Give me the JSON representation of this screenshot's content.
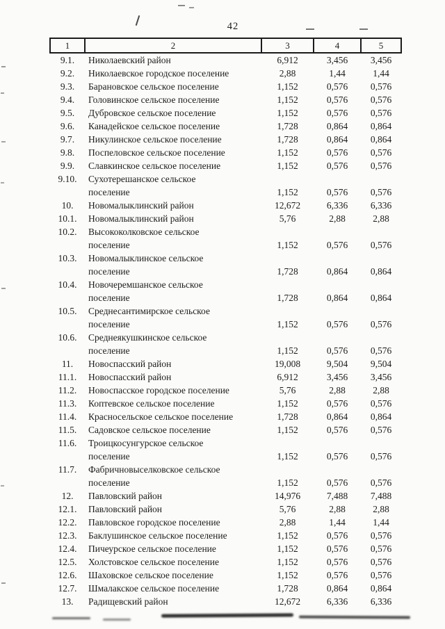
{
  "page": {
    "number": "42"
  },
  "table": {
    "header": [
      "1",
      "2",
      "3",
      "4",
      "5"
    ],
    "rows": [
      {
        "num": "9.1.",
        "name": "Николаевский район",
        "c3": "6,912",
        "c4": "3,456",
        "c5": "3,456"
      },
      {
        "num": "9.2.",
        "name": "Николаевское городское поселение",
        "c3": "2,88",
        "c4": "1,44",
        "c5": "1,44"
      },
      {
        "num": "9.3.",
        "name": "Барановское сельское поселение",
        "c3": "1,152",
        "c4": "0,576",
        "c5": "0,576"
      },
      {
        "num": "9.4.",
        "name": "Головинское сельское поселение",
        "c3": "1,152",
        "c4": "0,576",
        "c5": "0,576"
      },
      {
        "num": "9.5.",
        "name": "Дубровское сельское поселение",
        "c3": "1,152",
        "c4": "0,576",
        "c5": "0,576"
      },
      {
        "num": "9.6.",
        "name": "Канадейское сельское поселение",
        "c3": "1,728",
        "c4": "0,864",
        "c5": "0,864"
      },
      {
        "num": "9.7.",
        "name": "Никулинское сельское поселение",
        "c3": "1,728",
        "c4": "0,864",
        "c5": "0,864"
      },
      {
        "num": "9.8.",
        "name": "Поспеловское сельское поселение",
        "c3": "1,152",
        "c4": "0,576",
        "c5": "0,576"
      },
      {
        "num": "9.9.",
        "name": "Славкинское сельское поселение",
        "c3": "1,152",
        "c4": "0,576",
        "c5": "0,576"
      },
      {
        "num": "9.10.",
        "name": "Сухотерешанское сельское\nпоселение",
        "c3": "1,152",
        "c4": "0,576",
        "c5": "0,576"
      },
      {
        "num": "10.",
        "name": "Новомалыклинский район",
        "c3": "12,672",
        "c4": "6,336",
        "c5": "6,336"
      },
      {
        "num": "10.1.",
        "name": "Новомалыклинский район",
        "c3": "5,76",
        "c4": "2,88",
        "c5": "2,88"
      },
      {
        "num": "10.2.",
        "name": "Высококолковское сельское\nпоселение",
        "c3": "1,152",
        "c4": "0,576",
        "c5": "0,576"
      },
      {
        "num": "10.3.",
        "name": "Новомалыклинское сельское\nпоселение",
        "c3": "1,728",
        "c4": "0,864",
        "c5": "0,864"
      },
      {
        "num": "10.4.",
        "name": "Новочеремшанское сельское\nпоселение",
        "c3": "1,728",
        "c4": "0,864",
        "c5": "0,864"
      },
      {
        "num": "10.5.",
        "name": "Среднесантимирское сельское\nпоселение",
        "c3": "1,152",
        "c4": "0,576",
        "c5": "0,576"
      },
      {
        "num": "10.6.",
        "name": "Среднеякушкинское сельское\nпоселение",
        "c3": "1,152",
        "c4": "0,576",
        "c5": "0,576"
      },
      {
        "num": "11.",
        "name": "Новоспасский район",
        "c3": "19,008",
        "c4": "9,504",
        "c5": "9,504"
      },
      {
        "num": "11.1.",
        "name": "Новоспасский район",
        "c3": "6,912",
        "c4": "3,456",
        "c5": "3,456"
      },
      {
        "num": "11.2.",
        "name": "Новоспасское городское поселение",
        "c3": "5,76",
        "c4": "2,88",
        "c5": "2,88"
      },
      {
        "num": "11.3.",
        "name": "Коптевское сельское поселение",
        "c3": "1,152",
        "c4": "0,576",
        "c5": "0,576"
      },
      {
        "num": "11.4.",
        "name": "Красносельское сельское поселение",
        "c3": "1,728",
        "c4": "0,864",
        "c5": "0,864"
      },
      {
        "num": "11.5.",
        "name": "Садовское сельское поселение",
        "c3": "1,152",
        "c4": "0,576",
        "c5": "0,576"
      },
      {
        "num": "11.6.",
        "name": "Троицкосунгурское сельское\nпоселение",
        "c3": "1,152",
        "c4": "0,576",
        "c5": "0,576"
      },
      {
        "num": "11.7.",
        "name": "Фабричновыселковское сельское\nпоселение",
        "c3": "1,152",
        "c4": "0,576",
        "c5": "0,576"
      },
      {
        "num": "12.",
        "name": "Павловский район",
        "c3": "14,976",
        "c4": "7,488",
        "c5": "7,488"
      },
      {
        "num": "12.1.",
        "name": "Павловский район",
        "c3": "5,76",
        "c4": "2,88",
        "c5": "2,88"
      },
      {
        "num": "12.2.",
        "name": "Павловское городское поселение",
        "c3": "2,88",
        "c4": "1,44",
        "c5": "1,44"
      },
      {
        "num": "12.3.",
        "name": "Баклушинское сельское поселение",
        "c3": "1,152",
        "c4": "0,576",
        "c5": "0,576"
      },
      {
        "num": "12.4.",
        "name": "Пичеурское сельское поселение",
        "c3": "1,152",
        "c4": "0,576",
        "c5": "0,576"
      },
      {
        "num": "12.5.",
        "name": "Холстовское сельское поселение",
        "c3": "1,152",
        "c4": "0,576",
        "c5": "0,576"
      },
      {
        "num": "12.6.",
        "name": "Шаховское сельское поселение",
        "c3": "1,152",
        "c4": "0,576",
        "c5": "0,576"
      },
      {
        "num": "12.7.",
        "name": "Шмалакское сельское поселение",
        "c3": "1,728",
        "c4": "0,864",
        "c5": "0,864"
      },
      {
        "num": "13.",
        "name": "Радищевский район",
        "c3": "12,672",
        "c4": "6,336",
        "c5": "6,336"
      }
    ]
  }
}
